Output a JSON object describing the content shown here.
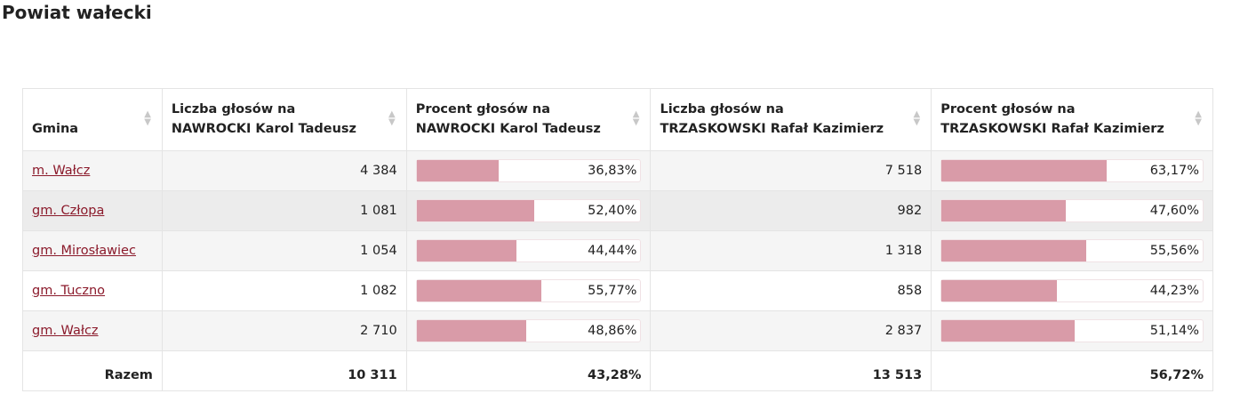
{
  "header": {
    "title": "Powiat wałecki"
  },
  "table": {
    "columns": [
      "Gmina",
      "Liczba głosów na\nNAWROCKI Karol Tadeusz",
      "Procent głosów na\nNAWROCKI Karol Tadeusz",
      "Liczba głosów na\nTRZASKOWSKI Rafał Kazimierz",
      "Procent głosów na\nTRZASKOWSKI Rafał Kazimierz"
    ],
    "rows": [
      {
        "gmina": "m. Wałcz",
        "votes_a": "4 384",
        "pct_a": 36.83,
        "pct_a_label": "36,83%",
        "votes_b": "7 518",
        "pct_b": 63.17,
        "pct_b_label": "63,17%"
      },
      {
        "gmina": "gm. Człopa",
        "votes_a": "1 081",
        "pct_a": 52.4,
        "pct_a_label": "52,40%",
        "votes_b": "982",
        "pct_b": 47.6,
        "pct_b_label": "47,60%"
      },
      {
        "gmina": "gm. Mirosławiec",
        "votes_a": "1 054",
        "pct_a": 44.44,
        "pct_a_label": "44,44%",
        "votes_b": "1 318",
        "pct_b": 55.56,
        "pct_b_label": "55,56%"
      },
      {
        "gmina": "gm. Tuczno",
        "votes_a": "1 082",
        "pct_a": 55.77,
        "pct_a_label": "55,77%",
        "votes_b": "858",
        "pct_b": 44.23,
        "pct_b_label": "44,23%"
      },
      {
        "gmina": "gm. Wałcz",
        "votes_a": "2 710",
        "pct_a": 48.86,
        "pct_a_label": "48,86%",
        "votes_b": "2 837",
        "pct_b": 51.14,
        "pct_b_label": "51,14%"
      }
    ],
    "total": {
      "label": "Razem",
      "votes_a": "10 311",
      "pct_a": "43,28%",
      "votes_b": "13 513",
      "pct_b": "56,72%"
    }
  }
}
